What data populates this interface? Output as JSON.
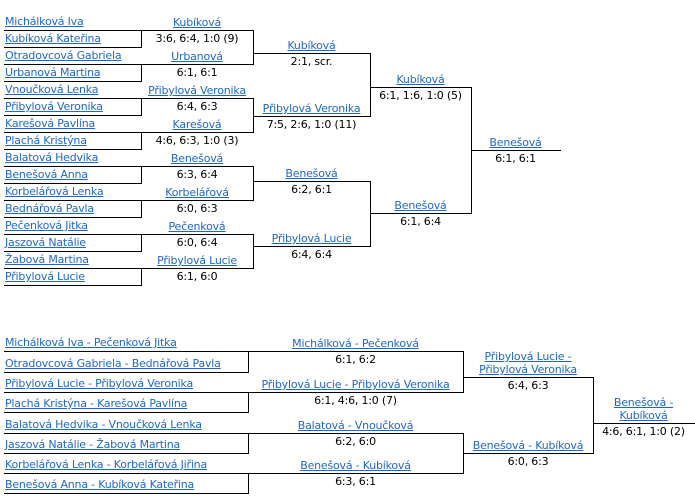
{
  "colors": {
    "link_blue": "#2068c8",
    "line_black": "#000000",
    "score_text": "#000000",
    "background": "#ffffff"
  },
  "singles_bracket": {
    "entrants": [
      "Michálková Iva",
      "Kubíková Kateřina",
      "Otradovcová Gabriela",
      "Urbanová Martina",
      "Vnoučková Lenka",
      "Přibylová Veronika",
      "Karešová Pavlína",
      "Plachá Kristýna",
      "Balatová Hedvika",
      "Benešová Anna",
      "Korbelářová Lenka",
      "Bednářová Pavla",
      "Pečenková Jitka",
      "Jaszová Natálie",
      "Žabová Martina",
      "Přibylová Lucie"
    ],
    "round1": [
      {
        "winner": "Kubíková",
        "score": "3:6, 6:4, 1:0 (9)"
      },
      {
        "winner": "Urbanová",
        "score": "6:1, 6:1"
      },
      {
        "winner": "Přibylová Veronika",
        "score": "6:4, 6:3"
      },
      {
        "winner": "Karešová",
        "score": "4:6, 6:3, 1:0 (3)"
      },
      {
        "winner": "Benešová",
        "score": "6:3, 6:4"
      },
      {
        "winner": "Korbelářová",
        "score": "6:0, 6:3"
      },
      {
        "winner": "Pečenková",
        "score": "6:0, 6:4"
      },
      {
        "winner": "Přibylová Lucie",
        "score": "6:1, 6:0"
      }
    ],
    "quarterfinals": [
      {
        "winner": "Kubíková",
        "score": "2:1, scr."
      },
      {
        "winner": "Přibylová Veronika",
        "score": "7:5, 2:6, 1:0 (11)"
      },
      {
        "winner": "Benešová",
        "score": "6:2, 6:1"
      },
      {
        "winner": "Přibylová Lucie",
        "score": "6:4, 6:4"
      }
    ],
    "semifinals": [
      {
        "winner": "Kubíková",
        "score": "6:1, 1:6, 1:0 (5)"
      },
      {
        "winner": "Benešová",
        "score": "6:1, 6:4"
      }
    ],
    "final": {
      "winner": "Benešová",
      "score": "6:1, 6:1"
    }
  },
  "doubles_bracket": {
    "entrants": [
      "Michálková Iva - Pečenková Jitka",
      "Otradovcová Gabriela - Bednářová Pavla",
      "Přibylová Lucie - Přibylová Veronika",
      "Plachá Kristýna - Karešová Pavlína",
      "Balatová Hedvika - Vnoučková Lenka",
      "Jaszová Natálie - Žabová Martina",
      "Korbelářová Lenka - Korbelářová Jiřina",
      "Benešová Anna - Kubíková Kateřina"
    ],
    "quarterfinals": [
      {
        "winner": "Michálková - Pečenková",
        "score": "6:1, 6:2"
      },
      {
        "winner": "Přibylová Lucie - Přibylová Veronika",
        "score": "6:1, 4:6, 1:0 (7)"
      },
      {
        "winner": "Balatová - Vnoučková",
        "score": "6:2, 6:0"
      },
      {
        "winner": "Benešová - Kubíková",
        "score": "6:3, 6:1"
      }
    ],
    "semifinals": [
      {
        "winner": "Přibylová Lucie - Přibylová Veronika",
        "score": "6:4, 6:3"
      },
      {
        "winner": "Benešová - Kubíková",
        "score": "6:0, 6:3"
      }
    ],
    "final": {
      "winner": "Benešová - Kubíková",
      "score": "4:6, 6:1, 1:0 (2)"
    }
  }
}
